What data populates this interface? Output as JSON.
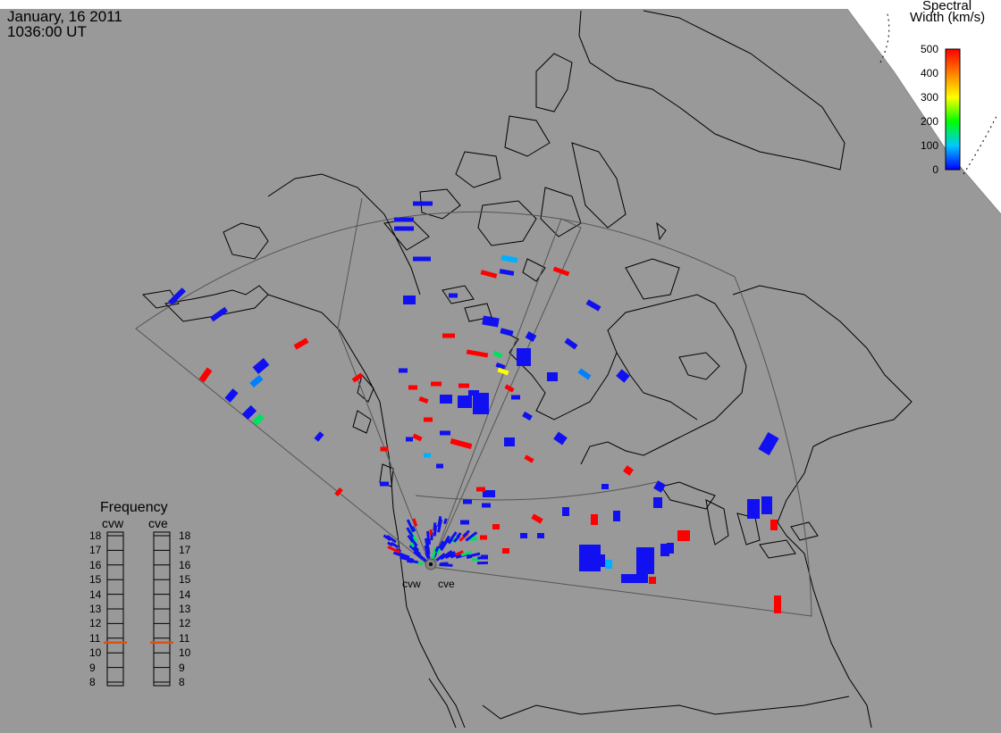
{
  "header": {
    "date": "January, 16 2011",
    "time": "1036:00 UT"
  },
  "colorbar": {
    "title_line1": "Spectral",
    "title_line2": "Width (km/s)",
    "ticks": [
      "0",
      "100",
      "200",
      "300",
      "400",
      "500"
    ],
    "stops": [
      "#0000ff",
      "#00c8ff",
      "#00ff00",
      "#ffff00",
      "#ff8000",
      "#ff0000"
    ]
  },
  "radars": {
    "sites": [
      {
        "id": "cvw",
        "label": "cvw"
      },
      {
        "id": "cve",
        "label": "cve"
      }
    ]
  },
  "frequency": {
    "title": "Frequency",
    "columns": [
      {
        "id": "cvw",
        "label": "cvw",
        "value_mhz": 10.7
      },
      {
        "id": "cve",
        "label": "cve",
        "value_mhz": 10.7
      }
    ],
    "scale": [
      "8",
      "9",
      "10",
      "11",
      "12",
      "13",
      "14",
      "15",
      "16",
      "17",
      "18"
    ],
    "marker_color": "#e05010"
  },
  "colors": {
    "map_background": "#999999",
    "polar_background": "#ffffff",
    "coastline": "#000000",
    "fov_outline": "#555555"
  }
}
